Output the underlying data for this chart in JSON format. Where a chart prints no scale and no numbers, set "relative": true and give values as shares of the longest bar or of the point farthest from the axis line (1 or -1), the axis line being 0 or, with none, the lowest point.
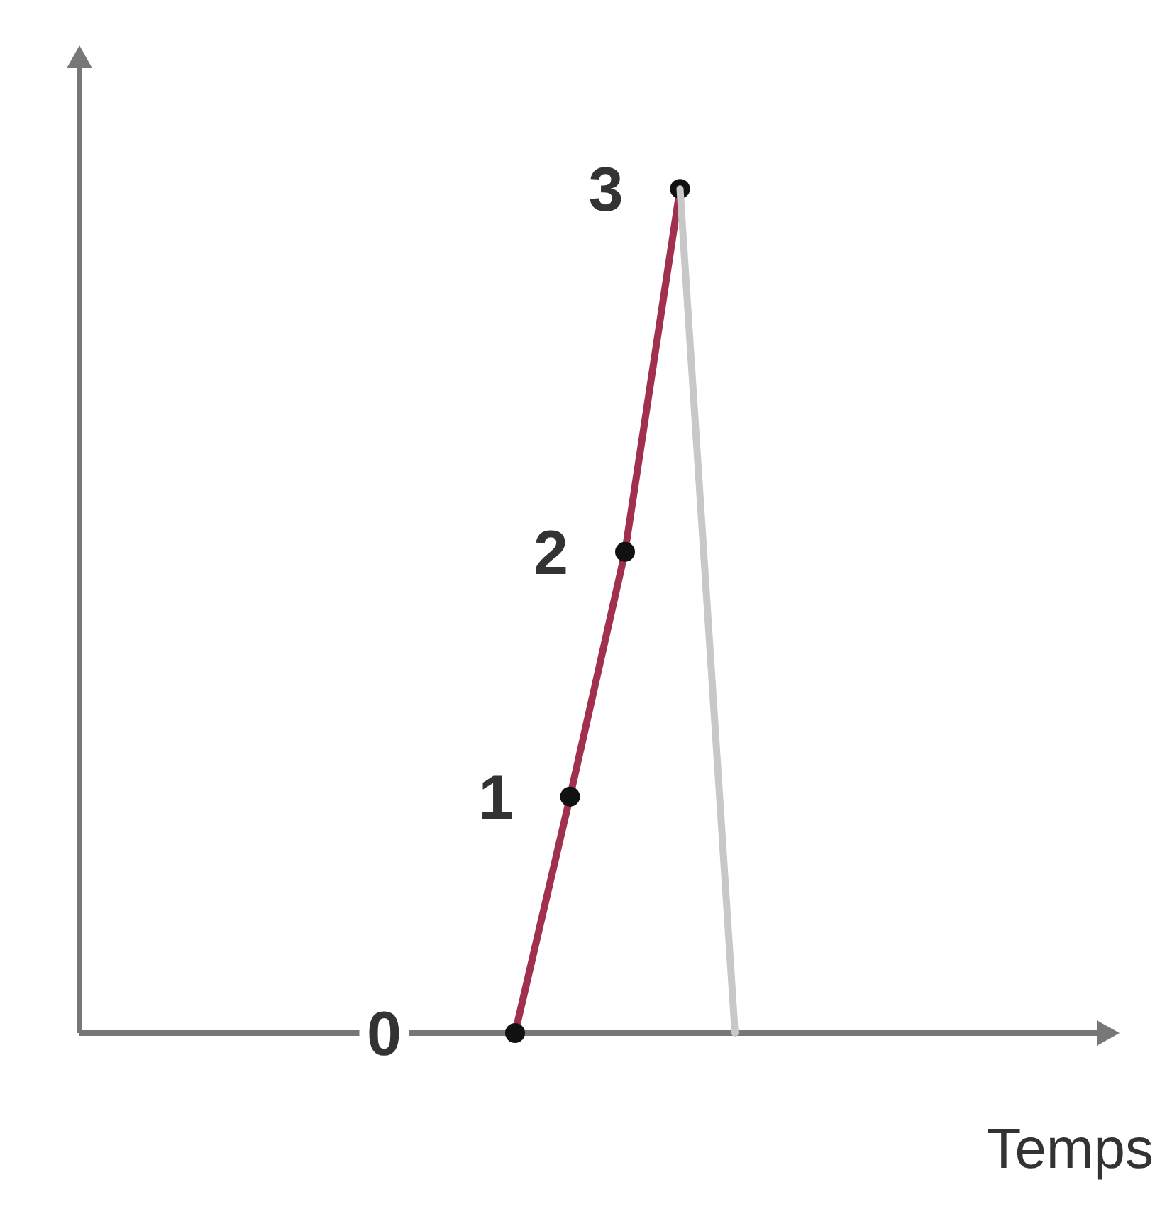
{
  "chart_data": {
    "type": "line",
    "xlabel": "Temps",
    "relative": true,
    "categories": [
      null,
      null,
      null,
      null,
      null
    ],
    "series": [
      {
        "color": "#a0304e",
        "marker": "circle",
        "values": [
          0,
          0.28,
          0.57,
          1,
          null
        ]
      },
      {
        "color": "#c8c8c8",
        "marker": "none",
        "values": [
          null,
          null,
          null,
          1,
          0
        ]
      }
    ],
    "annotations": [
      "0",
      "1",
      "2",
      "3"
    ]
  }
}
